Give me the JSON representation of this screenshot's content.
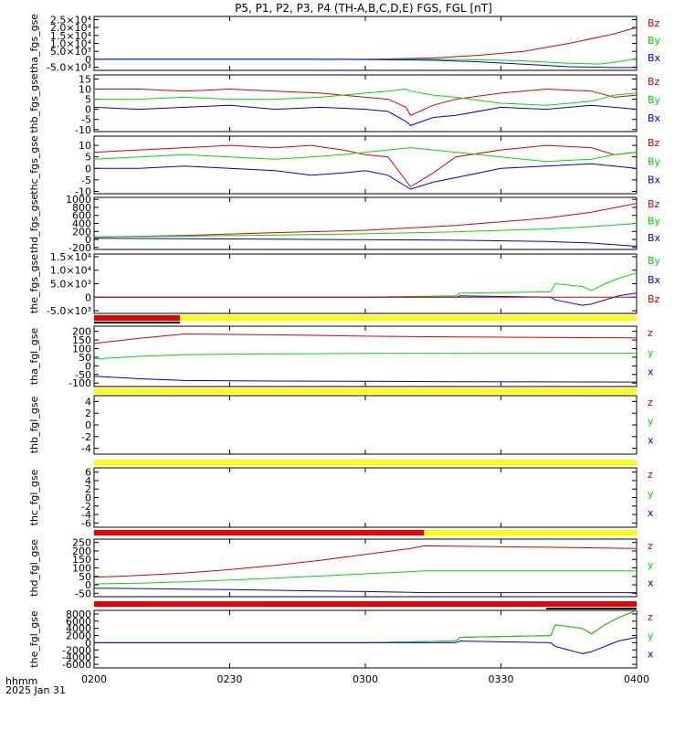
{
  "title": "P5, P1, P2, P3, P4 (TH-A,B,C,D,E) FGS, FGL [nT]",
  "time_axis": {
    "ticks": [
      "0200",
      "0230",
      "0300",
      "0330",
      "0400"
    ],
    "label_line1": "hhmm",
    "label_line2": "2025 Jan 31"
  },
  "chart_data": [
    {
      "type": "line",
      "ylabel": "tha_fgs_gse",
      "yticks": [
        "-5.0×10³",
        "0",
        "5.0×10³",
        "1.0×10⁴",
        "1.5×10⁴",
        "2.0×10⁴",
        "2.5×10⁴"
      ],
      "ylim": [
        -7000,
        27000
      ],
      "series": [
        {
          "name": "Bz",
          "color": "#dd0000",
          "x": [
            0,
            30,
            45,
            60,
            75,
            85,
            95,
            105,
            115,
            120
          ],
          "values": [
            0,
            0,
            0,
            0,
            800,
            2500,
            5000,
            10000,
            16000,
            20000
          ]
        },
        {
          "name": "By",
          "color": "#00dd00",
          "x": [
            0,
            30,
            45,
            60,
            75,
            85,
            95,
            105,
            112,
            116,
            120
          ],
          "values": [
            0,
            0,
            0,
            0,
            0,
            -300,
            -1000,
            -2500,
            -3000,
            -1500,
            500
          ]
        },
        {
          "name": "Bx",
          "color": "#0000dd",
          "x": [
            0,
            30,
            45,
            60,
            75,
            85,
            95,
            105,
            115,
            120
          ],
          "values": [
            0,
            0,
            0,
            -150,
            -600,
            -1600,
            -3100,
            -4700,
            -5200,
            -5200
          ]
        }
      ]
    },
    {
      "type": "line",
      "ylabel": "thb_fgs_gse",
      "yticks": [
        "-10",
        "-5",
        "0",
        "5",
        "10",
        "15"
      ],
      "ylim": [
        -11,
        17
      ],
      "series": [
        {
          "name": "Bz",
          "color": "#dd0000",
          "x": [
            0,
            10,
            20,
            30,
            40,
            50,
            60,
            65,
            69,
            70,
            75,
            80,
            90,
            100,
            110,
            115,
            120
          ],
          "values": [
            10,
            10,
            9,
            10,
            9,
            8,
            6,
            5,
            1,
            -3,
            2,
            5,
            8,
            10,
            9,
            6,
            7
          ]
        },
        {
          "name": "By",
          "color": "#00dd00",
          "x": [
            0,
            10,
            20,
            30,
            40,
            50,
            60,
            65,
            69,
            70,
            75,
            80,
            90,
            100,
            110,
            115,
            120
          ],
          "values": [
            5,
            5,
            6,
            5,
            5,
            6,
            8,
            9,
            10,
            9,
            7,
            6,
            3,
            2,
            4,
            7,
            8
          ]
        },
        {
          "name": "Bx",
          "color": "#0000dd",
          "x": [
            0,
            10,
            20,
            30,
            40,
            50,
            60,
            65,
            69,
            70,
            75,
            80,
            90,
            100,
            110,
            115,
            120
          ],
          "values": [
            1,
            0,
            1,
            2,
            0,
            1,
            0,
            -1,
            -6,
            -8,
            -4,
            -3,
            1,
            0,
            2,
            1,
            0
          ]
        }
      ]
    },
    {
      "type": "line",
      "ylabel": "thc_fgs_gse",
      "yticks": [
        "-10",
        "-5",
        "0",
        "5",
        "10"
      ],
      "ylim": [
        -11,
        14
      ],
      "series": [
        {
          "name": "Bz",
          "color": "#dd0000",
          "x": [
            0,
            10,
            20,
            30,
            40,
            48,
            55,
            60,
            65,
            70,
            75,
            80,
            90,
            100,
            110,
            115,
            120
          ],
          "values": [
            7,
            8,
            9,
            10,
            9,
            10,
            8,
            6,
            5,
            -8,
            -2,
            5,
            8,
            10,
            9,
            6,
            7
          ]
        },
        {
          "name": "By",
          "color": "#00dd00",
          "x": [
            0,
            10,
            20,
            30,
            40,
            48,
            55,
            60,
            65,
            70,
            75,
            80,
            90,
            100,
            110,
            115,
            120
          ],
          "values": [
            4,
            5,
            6,
            5,
            4,
            5,
            6,
            7,
            8,
            9,
            8,
            7,
            5,
            3,
            4,
            6,
            7
          ]
        },
        {
          "name": "Bx",
          "color": "#0000dd",
          "x": [
            0,
            10,
            20,
            30,
            40,
            48,
            55,
            60,
            65,
            70,
            75,
            80,
            90,
            100,
            110,
            115,
            120
          ],
          "values": [
            0,
            0,
            1,
            0,
            -1,
            -3,
            -2,
            -1,
            -3,
            -9,
            -6,
            -4,
            0,
            1,
            2,
            1,
            0
          ]
        }
      ]
    },
    {
      "type": "line",
      "ylabel": "thd_fgs_gse",
      "yticks": [
        "-200",
        "0",
        "200",
        "400",
        "600",
        "800",
        "1000"
      ],
      "ylim": [
        -250,
        1050
      ],
      "series": [
        {
          "name": "Bz",
          "color": "#dd0000",
          "x": [
            0,
            20,
            40,
            60,
            80,
            100,
            110,
            120
          ],
          "values": [
            60,
            100,
            170,
            230,
            350,
            530,
            680,
            900
          ]
        },
        {
          "name": "By",
          "color": "#00dd00",
          "x": [
            0,
            20,
            40,
            60,
            80,
            100,
            110,
            120
          ],
          "values": [
            60,
            80,
            110,
            140,
            190,
            260,
            320,
            400
          ]
        },
        {
          "name": "Bx",
          "color": "#0000dd",
          "x": [
            0,
            20,
            40,
            60,
            80,
            100,
            110,
            120
          ],
          "values": [
            30,
            20,
            5,
            -5,
            -20,
            -50,
            -90,
            -170
          ]
        }
      ]
    },
    {
      "type": "line",
      "ylabel": "the_fgs_gse",
      "yticks": [
        "-5.0×10³",
        "0",
        "5.0×10³",
        "1.0×10⁴",
        "1.5×10⁴"
      ],
      "ylim": [
        -6000,
        16000
      ],
      "series": [
        {
          "name": "By",
          "color": "#00dd00",
          "x": [
            0,
            30,
            60,
            80,
            81,
            101,
            102,
            108,
            110,
            113,
            116,
            120
          ],
          "values": [
            0,
            0,
            0,
            500,
            1500,
            2000,
            5000,
            4000,
            2500,
            5000,
            7000,
            9000
          ]
        },
        {
          "name": "Bx",
          "color": "#0000dd",
          "x": [
            0,
            30,
            60,
            80,
            81,
            101,
            102,
            108,
            110,
            113,
            116,
            120
          ],
          "values": [
            0,
            0,
            0,
            0,
            500,
            0,
            -1000,
            -3000,
            -2500,
            -1000,
            500,
            1500
          ]
        },
        {
          "name": "Bz",
          "color": "#dd0000",
          "x": [
            0,
            120
          ],
          "values": [
            0,
            0
          ]
        }
      ]
    },
    {
      "type": "line",
      "ylabel": "tha_fgl_gse",
      "yticks": [
        "-100",
        "-50",
        "0",
        "50",
        "100",
        "150",
        "200"
      ],
      "ylim": [
        -120,
        230
      ],
      "series": [
        {
          "name": "z",
          "color": "#dd0000",
          "x": [
            0,
            10,
            20,
            40,
            60,
            80,
            100,
            120
          ],
          "values": [
            130,
            160,
            185,
            180,
            172,
            168,
            165,
            162
          ]
        },
        {
          "name": "y",
          "color": "#00dd00",
          "x": [
            0,
            10,
            20,
            40,
            60,
            80,
            100,
            120
          ],
          "values": [
            40,
            55,
            65,
            70,
            72,
            72,
            73,
            73
          ]
        },
        {
          "name": "x",
          "color": "#0000dd",
          "x": [
            0,
            10,
            20,
            40,
            60,
            80,
            100,
            120
          ],
          "values": [
            -60,
            -75,
            -85,
            -88,
            -90,
            -92,
            -93,
            -94
          ]
        }
      ]
    },
    {
      "type": "line",
      "ylabel": "thb_fgl_gse",
      "yticks": [
        "-4",
        "-2",
        "0",
        "2",
        "4"
      ],
      "ylim": [
        -5,
        5
      ],
      "series": [
        {
          "name": "z",
          "color": "#dd0000",
          "x": [],
          "values": []
        },
        {
          "name": "y",
          "color": "#00dd00",
          "x": [],
          "values": []
        },
        {
          "name": "x",
          "color": "#0000dd",
          "x": [],
          "values": []
        }
      ]
    },
    {
      "type": "line",
      "ylabel": "thc_fgl_gse",
      "yticks": [
        "-6",
        "-4",
        "-2",
        "0",
        "2",
        "4",
        "6"
      ],
      "ylim": [
        -7,
        7
      ],
      "series": [
        {
          "name": "z",
          "color": "#dd0000",
          "x": [],
          "values": []
        },
        {
          "name": "y",
          "color": "#00dd00",
          "x": [],
          "values": []
        },
        {
          "name": "x",
          "color": "#0000dd",
          "x": [],
          "values": []
        }
      ]
    },
    {
      "type": "line",
      "ylabel": "thd_fgl_gse",
      "yticks": [
        "-50",
        "0",
        "50",
        "100",
        "150",
        "200",
        "250"
      ],
      "ylim": [
        -70,
        270
      ],
      "series": [
        {
          "name": "z",
          "color": "#dd0000",
          "x": [
            0,
            10,
            20,
            30,
            40,
            50,
            60,
            70,
            73,
            80,
            100,
            120
          ],
          "values": [
            45,
            55,
            70,
            90,
            115,
            145,
            180,
            215,
            230,
            228,
            222,
            215
          ]
        },
        {
          "name": "y",
          "color": "#00dd00",
          "x": [
            0,
            10,
            20,
            30,
            40,
            50,
            60,
            70,
            73,
            80,
            100,
            120
          ],
          "values": [
            5,
            10,
            18,
            28,
            40,
            52,
            65,
            78,
            82,
            82,
            82,
            82
          ]
        },
        {
          "name": "x",
          "color": "#0000dd",
          "x": [
            0,
            10,
            20,
            30,
            40,
            50,
            60,
            70,
            73,
            80,
            100,
            120
          ],
          "values": [
            -20,
            -22,
            -25,
            -28,
            -32,
            -36,
            -40,
            -44,
            -46,
            -46,
            -46,
            -46
          ]
        }
      ]
    },
    {
      "type": "line",
      "ylabel": "the_fgl_gse",
      "yticks": [
        "-6000",
        "-4000",
        "-2000",
        "0",
        "2000",
        "4000",
        "6000",
        "8000"
      ],
      "ylim": [
        -7000,
        9000
      ],
      "series": [
        {
          "name": "z",
          "color": "#dd0000",
          "x": [
            0,
            30,
            60,
            80,
            81,
            101,
            102,
            108,
            110,
            113,
            116,
            120
          ],
          "values": [
            0,
            0,
            0,
            500,
            1500,
            2000,
            5000,
            4000,
            2500,
            5000,
            7000,
            9000
          ]
        },
        {
          "name": "y",
          "color": "#00dd00",
          "x": [
            0,
            30,
            60,
            80,
            81,
            101,
            102,
            108,
            110,
            113,
            116,
            120
          ],
          "values": [
            0,
            0,
            0,
            500,
            1500,
            2000,
            5000,
            4000,
            2500,
            5000,
            7000,
            9000
          ]
        },
        {
          "name": "x",
          "color": "#0000dd",
          "x": [
            0,
            30,
            60,
            80,
            81,
            101,
            102,
            108,
            110,
            113,
            116,
            120
          ],
          "values": [
            0,
            0,
            0,
            0,
            500,
            0,
            -1000,
            -3000,
            -2500,
            -1000,
            500,
            1500
          ]
        }
      ]
    }
  ],
  "mode_bars": [
    {
      "segments": [
        {
          "x0": 0,
          "x1": 19,
          "color": "#ee0000"
        },
        {
          "x0": 19,
          "x1": 120,
          "color": "#ffff00"
        }
      ],
      "under_x1": 19,
      "under_color": "#000000"
    },
    {
      "segments": [
        {
          "x0": 0,
          "x1": 120,
          "color": "#ffff00"
        }
      ]
    },
    {
      "segments": [
        {
          "x0": 0,
          "x1": 120,
          "color": "#ffff00"
        }
      ]
    },
    {
      "segments": [
        {
          "x0": 0,
          "x1": 73,
          "color": "#ee0000"
        },
        {
          "x0": 73,
          "x1": 120,
          "color": "#ffff00"
        }
      ]
    },
    {
      "segments": [
        {
          "x0": 0,
          "x1": 120,
          "color": "#ee0000"
        }
      ],
      "under_x0": 100,
      "under_x1": 120,
      "under_color": "#000000"
    }
  ]
}
